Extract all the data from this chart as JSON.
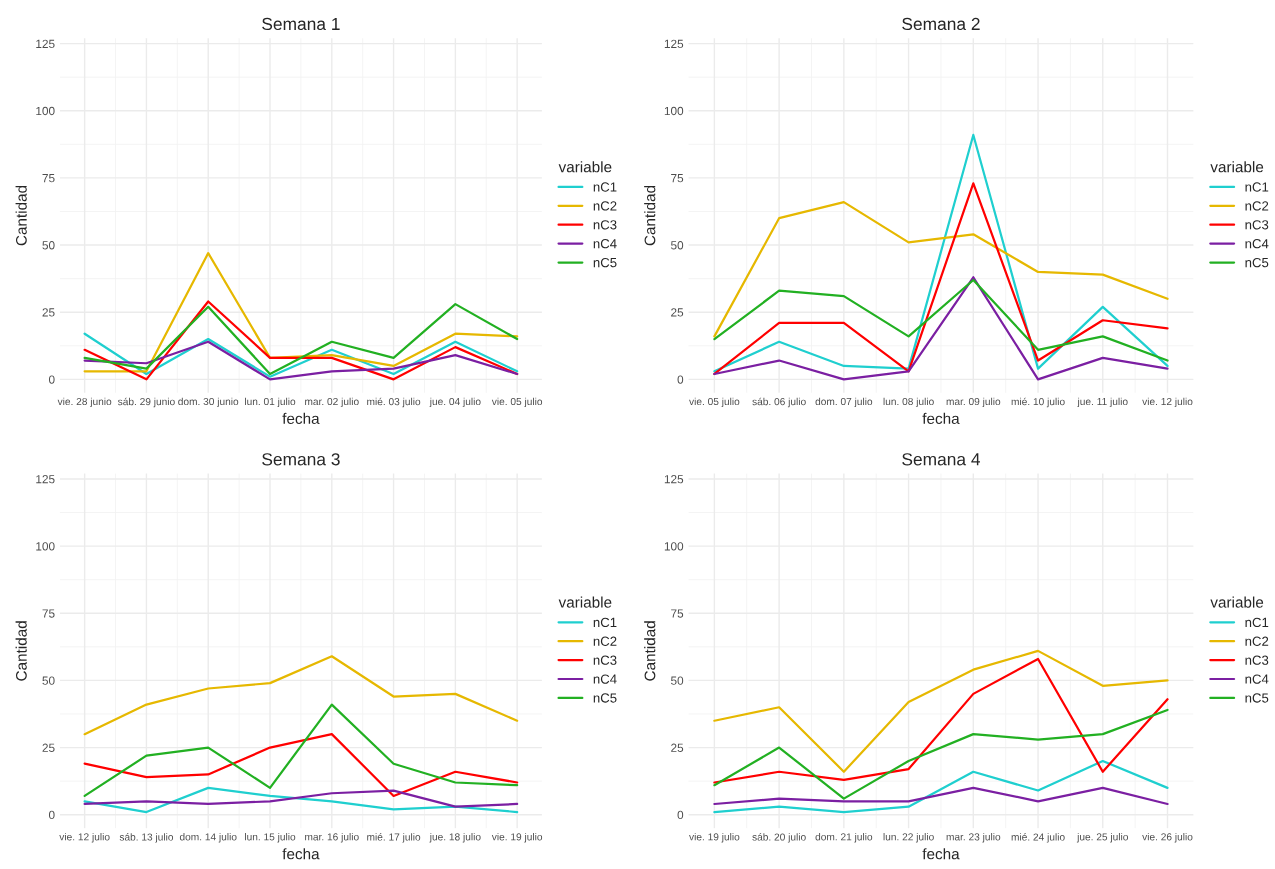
{
  "chart_data": [
    {
      "type": "line",
      "title": "Semana 1",
      "xlabel": "fecha",
      "ylabel": "Cantidad",
      "legend_title": "variable",
      "legend": "right",
      "grid": true,
      "ylim": [
        -5,
        127
      ],
      "yticks": [
        0,
        25,
        50,
        75,
        100,
        125
      ],
      "categories": [
        "vie. 28 junio",
        "sáb. 29 junio",
        "dom. 30 junio",
        "lun. 01 julio",
        "mar. 02 julio",
        "mié. 03 julio",
        "jue. 04 julio",
        "vie. 05 julio"
      ],
      "series": [
        {
          "name": "nC1",
          "color": "#1fcfcf",
          "values": [
            17,
            2,
            15,
            1,
            11,
            2,
            14,
            3
          ]
        },
        {
          "name": "nC2",
          "color": "#e6b800",
          "values": [
            3,
            3,
            47,
            8,
            9,
            5,
            17,
            16
          ]
        },
        {
          "name": "nC3",
          "color": "#ff0000",
          "values": [
            11,
            0,
            29,
            8,
            8,
            0,
            12,
            2
          ]
        },
        {
          "name": "nC4",
          "color": "#7b1fa2",
          "values": [
            7,
            6,
            14,
            0,
            3,
            4,
            9,
            2
          ]
        },
        {
          "name": "nC5",
          "color": "#22b022",
          "values": [
            8,
            4,
            27,
            2,
            14,
            8,
            28,
            15
          ]
        }
      ]
    },
    {
      "type": "line",
      "title": "Semana 2",
      "xlabel": "fecha",
      "ylabel": "Cantidad",
      "legend_title": "variable",
      "legend": "right",
      "grid": true,
      "ylim": [
        -5,
        127
      ],
      "yticks": [
        0,
        25,
        50,
        75,
        100,
        125
      ],
      "categories": [
        "vie. 05 julio",
        "sáb. 06 julio",
        "dom. 07 julio",
        "lun. 08 julio",
        "mar. 09 julio",
        "mié. 10 julio",
        "jue. 11 julio",
        "vie. 12 julio"
      ],
      "series": [
        {
          "name": "nC1",
          "color": "#1fcfcf",
          "values": [
            3,
            14,
            5,
            4,
            91,
            4,
            27,
            5
          ]
        },
        {
          "name": "nC2",
          "color": "#e6b800",
          "values": [
            16,
            60,
            66,
            51,
            54,
            40,
            39,
            30
          ]
        },
        {
          "name": "nC3",
          "color": "#ff0000",
          "values": [
            2,
            21,
            21,
            3,
            73,
            7,
            22,
            19
          ]
        },
        {
          "name": "nC4",
          "color": "#7b1fa2",
          "values": [
            2,
            7,
            0,
            3,
            38,
            0,
            8,
            4
          ]
        },
        {
          "name": "nC5",
          "color": "#22b022",
          "values": [
            15,
            33,
            31,
            16,
            37,
            11,
            16,
            7
          ]
        }
      ]
    },
    {
      "type": "line",
      "title": "Semana 3",
      "xlabel": "fecha",
      "ylabel": "Cantidad",
      "legend_title": "variable",
      "legend": "right",
      "grid": true,
      "ylim": [
        -5,
        127
      ],
      "yticks": [
        0,
        25,
        50,
        75,
        100,
        125
      ],
      "categories": [
        "vie. 12 julio",
        "sáb. 13 julio",
        "dom. 14 julio",
        "lun. 15 julio",
        "mar. 16 julio",
        "mié. 17 julio",
        "jue. 18 julio",
        "vie. 19 julio"
      ],
      "series": [
        {
          "name": "nC1",
          "color": "#1fcfcf",
          "values": [
            5,
            1,
            10,
            7,
            5,
            2,
            3,
            1
          ]
        },
        {
          "name": "nC2",
          "color": "#e6b800",
          "values": [
            30,
            41,
            47,
            49,
            59,
            44,
            45,
            35
          ]
        },
        {
          "name": "nC3",
          "color": "#ff0000",
          "values": [
            19,
            14,
            15,
            25,
            30,
            7,
            16,
            12
          ]
        },
        {
          "name": "nC4",
          "color": "#7b1fa2",
          "values": [
            4,
            5,
            4,
            5,
            8,
            9,
            3,
            4
          ]
        },
        {
          "name": "nC5",
          "color": "#22b022",
          "values": [
            7,
            22,
            25,
            10,
            41,
            19,
            12,
            11
          ]
        }
      ]
    },
    {
      "type": "line",
      "title": "Semana 4",
      "xlabel": "fecha",
      "ylabel": "Cantidad",
      "legend_title": "variable",
      "legend": "right",
      "grid": true,
      "ylim": [
        -5,
        127
      ],
      "yticks": [
        0,
        25,
        50,
        75,
        100,
        125
      ],
      "categories": [
        "vie. 19 julio",
        "sáb. 20 julio",
        "dom. 21 julio",
        "lun. 22 julio",
        "mar. 23 julio",
        "mié. 24 julio",
        "jue. 25 julio",
        "vie. 26 julio"
      ],
      "series": [
        {
          "name": "nC1",
          "color": "#1fcfcf",
          "values": [
            1,
            3,
            1,
            3,
            16,
            9,
            20,
            10
          ]
        },
        {
          "name": "nC2",
          "color": "#e6b800",
          "values": [
            35,
            40,
            16,
            42,
            54,
            61,
            48,
            50
          ]
        },
        {
          "name": "nC3",
          "color": "#ff0000",
          "values": [
            12,
            16,
            13,
            17,
            45,
            58,
            16,
            43
          ]
        },
        {
          "name": "nC4",
          "color": "#7b1fa2",
          "values": [
            4,
            6,
            5,
            5,
            10,
            5,
            10,
            4
          ]
        },
        {
          "name": "nC5",
          "color": "#22b022",
          "values": [
            11,
            25,
            6,
            20,
            30,
            28,
            30,
            39
          ]
        }
      ]
    }
  ]
}
